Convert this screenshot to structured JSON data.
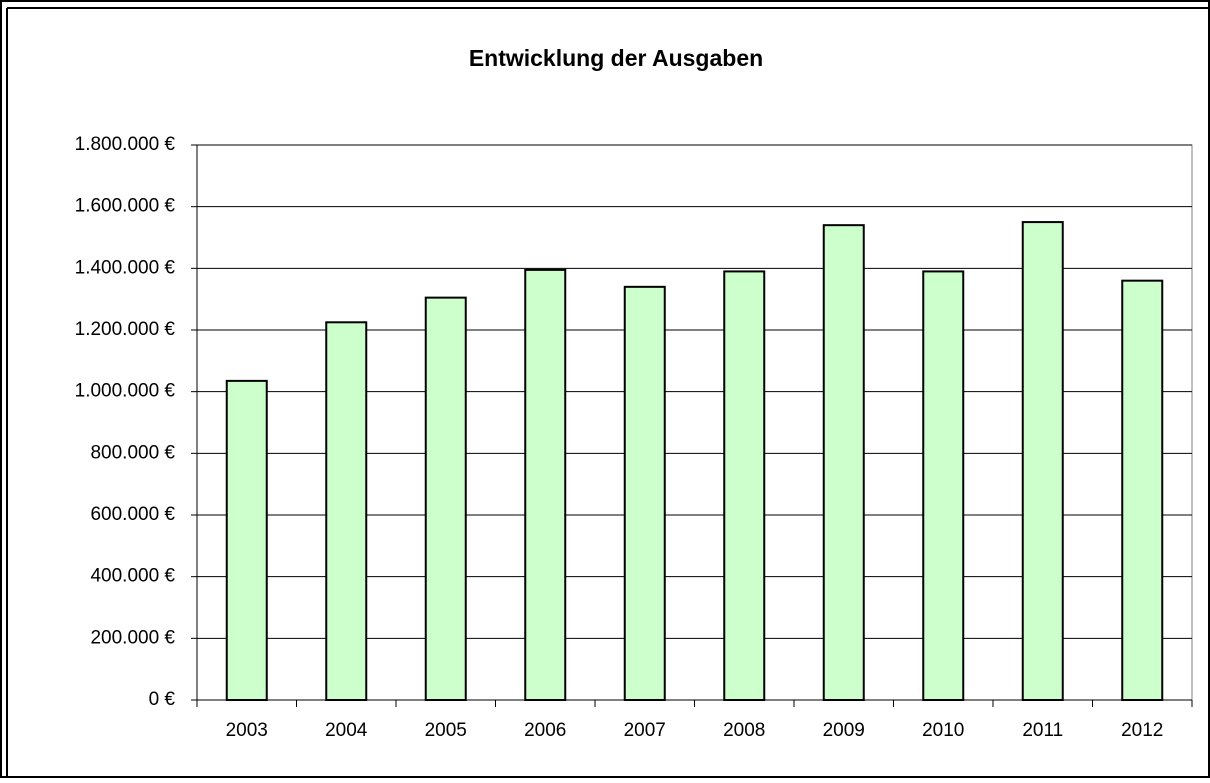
{
  "chart_data": {
    "type": "bar",
    "title": "Entwicklung der Ausgaben",
    "categories": [
      "2003",
      "2004",
      "2005",
      "2006",
      "2007",
      "2008",
      "2009",
      "2010",
      "2011",
      "2012"
    ],
    "values": [
      1035000,
      1225000,
      1305000,
      1395000,
      1340000,
      1390000,
      1540000,
      1390000,
      1550000,
      1360000
    ],
    "color": "#ccffcc",
    "ylim": [
      0,
      1800000
    ],
    "yticks": [
      {
        "value": 0,
        "label": "0 €"
      },
      {
        "value": 200000,
        "label": "200.000 €"
      },
      {
        "value": 400000,
        "label": "400.000 €"
      },
      {
        "value": 600000,
        "label": "600.000 €"
      },
      {
        "value": 800000,
        "label": "800.000 €"
      },
      {
        "value": 1000000,
        "label": "1.000.000 €"
      },
      {
        "value": 1200000,
        "label": "1.200.000 €"
      },
      {
        "value": 1400000,
        "label": "1.400.000 €"
      },
      {
        "value": 1600000,
        "label": "1.600.000 €"
      },
      {
        "value": 1800000,
        "label": "1.800.000 €"
      }
    ],
    "grid": true
  }
}
